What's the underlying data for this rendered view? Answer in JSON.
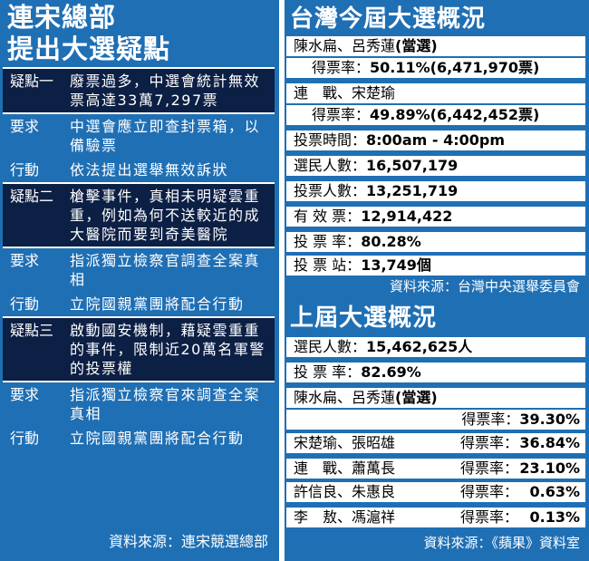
{
  "left": {
    "title_line1": "連宋總部",
    "title_line2": "提出大選疑點",
    "rows": [
      {
        "label": "疑點一",
        "text": "廢票過多，中選會統計無效票高達33萬7,297票",
        "dark": true
      },
      {
        "label": "要求",
        "text": "中選會應立即查封票箱，以備驗票",
        "dark": false
      },
      {
        "label": "行動",
        "text": "依法提出選舉無效訴狀",
        "dark": false
      },
      {
        "label": "疑點二",
        "text": "槍擊事件，真相未明疑雲重重，例如為何不送較近的成大醫院而要到奇美醫院",
        "dark": true
      },
      {
        "label": "要求",
        "text": "指派獨立檢察官調查全案真相",
        "dark": false
      },
      {
        "label": "行動",
        "text": "立院國親黨團將配合行動",
        "dark": false
      },
      {
        "label": "疑點三",
        "text": "啟動國安機制，藉疑雲重重的事件，限制近20萬名軍警的投票權",
        "dark": true
      },
      {
        "label": "要求",
        "text": "指派獨立檢察官來調查全案真相",
        "dark": false
      },
      {
        "label": "行動",
        "text": "立院國親黨團將配合行動",
        "dark": false
      }
    ],
    "source": "資料來源：連宋競選總部"
  },
  "current": {
    "title": "台灣今屆大選概況",
    "winner_names": "陳水扁、呂秀蓮",
    "winner_tag": "(當選)",
    "winner_rate_label": "得票率：",
    "winner_rate_value": "50.11%(6,471,970票)",
    "loser_names": "連　戰、宋楚瑜",
    "loser_rate_label": "得票率：",
    "loser_rate_value": "49.89%(6,442,452票)",
    "stats": [
      {
        "label": "投票時間：",
        "value": "8:00am - 4:00pm"
      },
      {
        "label": "選民人數：",
        "value": "16,507,179"
      },
      {
        "label": "投票人數：",
        "value": "13,251,719"
      },
      {
        "label": "有 效 票：",
        "value": "12,914,422"
      },
      {
        "label": "投 票 率：",
        "value": "80.28%"
      },
      {
        "label": "投 票 站：",
        "value": "13,749個"
      }
    ],
    "source": "資料來源：台灣中央選舉委員會"
  },
  "previous": {
    "title": "上屆大選概況",
    "voters_label": "選民人數：",
    "voters_value": "15,462,625人",
    "turnout_label": "投 票 率：",
    "turnout_value": "82.69%",
    "winner_names": "陳水扁、呂秀蓮",
    "winner_tag": "(當選)",
    "winner_rate_label": "得票率：",
    "winner_rate_value": "39.30%",
    "candidates": [
      {
        "names": "宋楚瑜、張昭雄",
        "rate_label": "得票率：",
        "rate": "36.84%"
      },
      {
        "names": "連　戰、蕭萬長",
        "rate_label": "得票率：",
        "rate": "23.10%"
      },
      {
        "names": "許信良、朱惠良",
        "rate_label": "得票率：",
        "rate": "0.63%"
      },
      {
        "names": "李　敖、馮滬祥",
        "rate_label": "得票率：",
        "rate": "0.13%"
      }
    ],
    "source": "資料來源：《蘋果》資料室"
  }
}
